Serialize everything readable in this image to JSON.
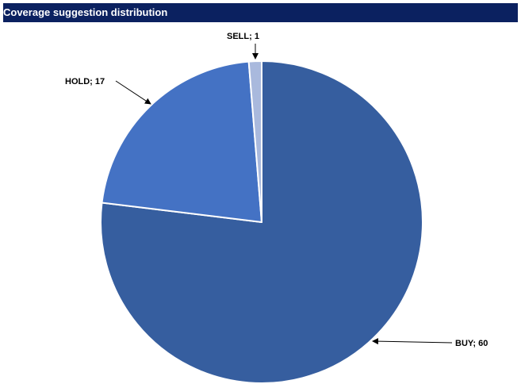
{
  "chart_data": {
    "type": "pie",
    "title": "Coverage suggestion distribution",
    "categories": [
      "BUY",
      "HOLD",
      "SELL"
    ],
    "values": [
      60,
      17,
      1
    ],
    "data_labels": [
      "BUY; 60",
      "HOLD; 17",
      "SELL; 1"
    ],
    "colors": [
      "#365e9f",
      "#4472c4",
      "#a9b9dd"
    ],
    "title_bar_color": "#0b2160",
    "start": "12 o'clock",
    "direction": "clockwise",
    "legend": "none"
  }
}
